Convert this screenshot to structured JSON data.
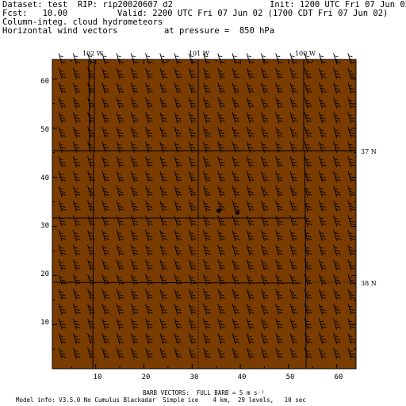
{
  "header": {
    "dataset": "Dataset: test  RIP: rip20020607 d2",
    "init": "Init: 1200 UTC Fri 07 Jun 02",
    "fcst": "Fcst:   10.00",
    "valid": "Valid: 2200 UTC Fri 07 Jun 02 (1700 CDT Fri 07 Jun 02)",
    "field1": "Column-integ. cloud hydrometeors",
    "field2": "Horizontal wind vectors",
    "pressure": "at pressure =  850 hPa"
  },
  "footer": {
    "barb_note": "BARB VECTORS:  FULL BARB = 5 m s⁻¹",
    "model_info": "Model info: V3.5.0 No Cumulus Blackadar  Simple ice    4 km,  29 levels,   10 sec"
  },
  "colors": {
    "background": "#7a3c00",
    "lines": "#000000",
    "page": "#ffffff"
  },
  "map": {
    "grid_x_range": [
      1,
      64
    ],
    "grid_y_range": [
      1,
      64
    ],
    "x_ticks": [
      "10",
      "20",
      "30",
      "40",
      "50",
      "60"
    ],
    "y_ticks": [
      "10",
      "20",
      "30",
      "40",
      "50",
      "60"
    ],
    "longitude_labels": [
      "102 W",
      "101 W",
      "100 W"
    ],
    "latitude_labels": [
      "37 N",
      "38 N"
    ],
    "wind_barb_vectors": "uniform-westerly-barbs",
    "point_markers": [
      {
        "x": 35.5,
        "y": 33.2
      },
      {
        "x": 39.4,
        "y": 32.8
      }
    ]
  }
}
